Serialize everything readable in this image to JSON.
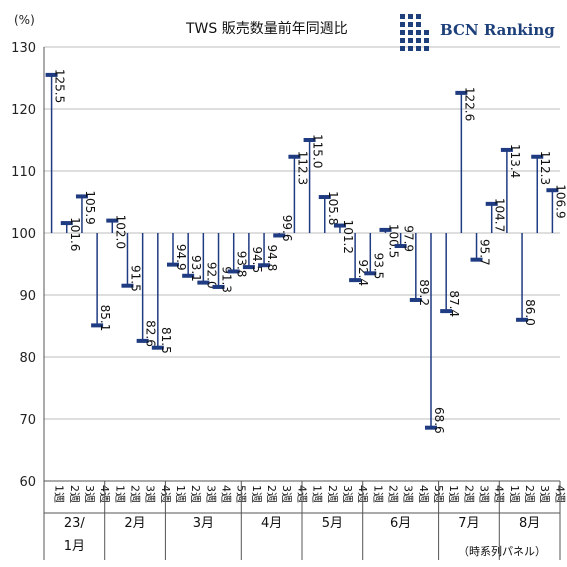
{
  "title": "TWS 販売数量前年同週比",
  "logo_text": "BCN Ranking",
  "note": "（時系列パネル）",
  "colors": {
    "bar": "#1f3b82",
    "grid": "#bdbdbd",
    "axis": "#555555",
    "logo": "#1d3f7a"
  },
  "chart_data": {
    "type": "bar",
    "baseline": 100,
    "ylim": [
      60,
      130
    ],
    "yticks": [
      60,
      70,
      80,
      90,
      100,
      110,
      120,
      130
    ],
    "ylabel": "(%)",
    "xlabel": "",
    "grid": true,
    "categories": [
      "1週",
      "2週",
      "3週",
      "4週",
      "1週",
      "2週",
      "3週",
      "4週",
      "1週",
      "2週",
      "3週",
      "4週",
      "5週",
      "1週",
      "2週",
      "3週",
      "4週",
      "1週",
      "2週",
      "3週",
      "4週",
      "1週",
      "2週",
      "3週",
      "4週",
      "5週",
      "1週",
      "2週",
      "3週",
      "4週",
      "1週",
      "2週",
      "3週",
      "4週"
    ],
    "values": [
      125.5,
      101.6,
      105.9,
      85.1,
      102.0,
      91.5,
      82.6,
      81.5,
      94.9,
      93.1,
      92.0,
      91.3,
      93.8,
      94.5,
      94.8,
      99.6,
      112.3,
      115.0,
      105.8,
      101.2,
      92.4,
      93.5,
      100.5,
      97.9,
      89.2,
      68.6,
      87.4,
      122.6,
      95.7,
      104.7,
      113.4,
      86.0,
      112.3,
      106.9
    ],
    "labels": [
      "125.5",
      "101.6",
      "105.9",
      "85.1",
      "102.0",
      "91.5",
      "82.6",
      "81.5",
      "94.9",
      "93.1",
      "92.0",
      "91.3",
      "93.8",
      "94.5",
      "94.8",
      "99.6",
      "112.3",
      "115.0",
      "105.8",
      "101.2",
      "92.4",
      "93.5",
      "100.5",
      "97.9",
      "89.2",
      "68.6",
      "87.4",
      "122.6",
      "95.7",
      "104.7",
      "113.4",
      "86.0",
      "112.3",
      "106.9"
    ],
    "months": [
      {
        "label": "23/",
        "label2": "1月",
        "count": 4
      },
      {
        "label": "2月",
        "count": 4
      },
      {
        "label": "3月",
        "count": 5
      },
      {
        "label": "4月",
        "count": 4
      },
      {
        "label": "5月",
        "count": 4
      },
      {
        "label": "6月",
        "count": 5
      },
      {
        "label": "7月",
        "count": 4
      },
      {
        "label": "8月",
        "count": 4
      }
    ]
  }
}
